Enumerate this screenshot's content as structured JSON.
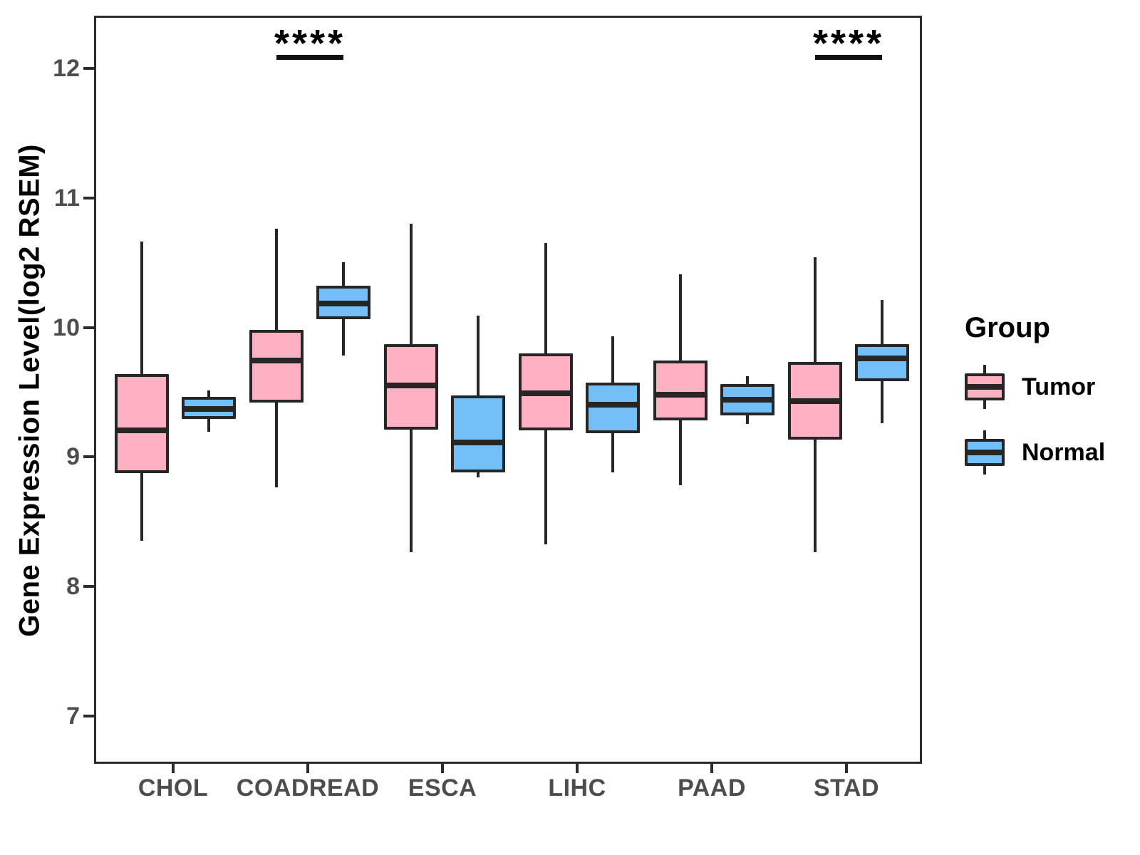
{
  "chart_data": {
    "type": "boxplot",
    "title": "",
    "xlabel": "",
    "ylabel": "Gene Expression Level(log2 RSEM)",
    "ylim": [
      6.63,
      12.41
    ],
    "y_ticks": [
      7,
      8,
      9,
      10,
      11,
      12
    ],
    "grid": false,
    "categories": [
      "CHOL",
      "COADREAD",
      "ESCA",
      "LIHC",
      "PAAD",
      "STAD"
    ],
    "series": [
      {
        "name": "Tumor",
        "color": "#FFB1C1",
        "boxes": [
          {
            "min": 8.37,
            "q1": 8.89,
            "median": 9.22,
            "q3": 9.66,
            "max": 10.68
          },
          {
            "min": 8.78,
            "q1": 9.44,
            "median": 9.76,
            "q3": 10.0,
            "max": 10.78
          },
          {
            "min": 8.28,
            "q1": 9.23,
            "median": 9.57,
            "q3": 9.89,
            "max": 10.82
          },
          {
            "min": 8.34,
            "q1": 9.22,
            "median": 9.51,
            "q3": 9.82,
            "max": 10.67
          },
          {
            "min": 8.8,
            "q1": 9.3,
            "median": 9.5,
            "q3": 9.76,
            "max": 10.43
          },
          {
            "min": 8.28,
            "q1": 9.15,
            "median": 9.45,
            "q3": 9.75,
            "max": 10.56
          }
        ]
      },
      {
        "name": "Normal",
        "color": "#74BFF7",
        "boxes": [
          {
            "min": 9.21,
            "q1": 9.31,
            "median": 9.39,
            "q3": 9.48,
            "max": 9.53
          },
          {
            "min": 9.8,
            "q1": 10.08,
            "median": 10.2,
            "q3": 10.34,
            "max": 10.52
          },
          {
            "min": 8.86,
            "q1": 8.9,
            "median": 9.13,
            "q3": 9.49,
            "max": 10.11
          },
          {
            "min": 8.9,
            "q1": 9.2,
            "median": 9.42,
            "q3": 9.59,
            "max": 9.95
          },
          {
            "min": 9.27,
            "q1": 9.34,
            "median": 9.46,
            "q3": 9.58,
            "max": 9.64
          },
          {
            "min": 9.28,
            "q1": 9.6,
            "median": 9.78,
            "q3": 9.89,
            "max": 10.23
          }
        ]
      }
    ],
    "annotations": [
      {
        "category": "COADREAD",
        "label": "****"
      },
      {
        "category": "STAD",
        "label": "****"
      }
    ],
    "legend": {
      "title": "Group",
      "position": "right"
    },
    "colors": {
      "line": "#262626",
      "tick_text": "#4d4d4d",
      "label_text": "#000000"
    }
  }
}
